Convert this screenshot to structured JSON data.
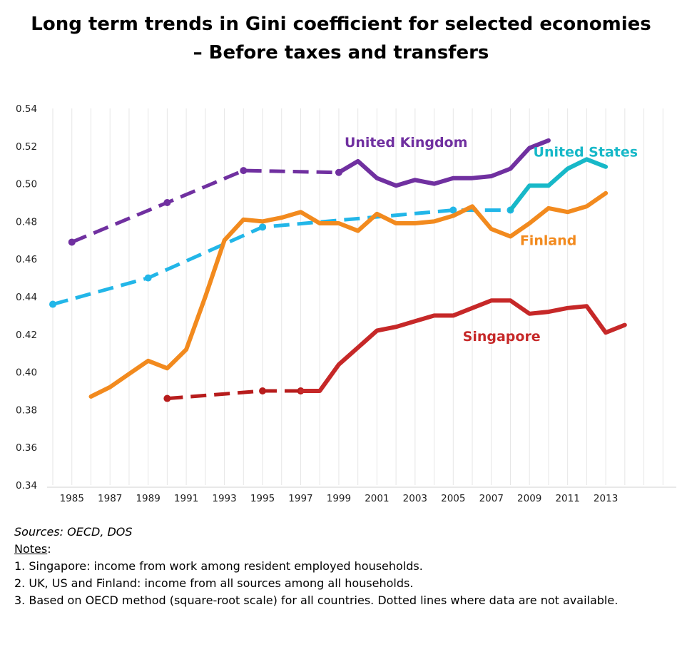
{
  "chart_data": {
    "type": "line",
    "title": "Long term trends in Gini coefficient for selected economies",
    "subtitle": "– Before taxes and transfers",
    "xlabel": "",
    "ylabel": "",
    "xlim": [
      1983.7,
      2016.7
    ],
    "ylim": [
      0.34,
      0.54
    ],
    "x_ticks": [
      "1985",
      "1987",
      "1989",
      "1991",
      "1993",
      "1995",
      "1997",
      "1999",
      "2001",
      "2003",
      "2005",
      "2007",
      "2009",
      "2011",
      "2013"
    ],
    "y_ticks": [
      "0.54",
      "0.52",
      "0.50",
      "0.48",
      "0.46",
      "0.44",
      "0.42",
      "0.40",
      "0.38",
      "0.36",
      "0.34"
    ],
    "grid": "vertical",
    "series": [
      {
        "name": "United Kingdom",
        "color": "#7030A0",
        "dashed_points": [
          [
            1985,
            0.469
          ],
          [
            1990,
            0.49
          ],
          [
            1994,
            0.507
          ],
          [
            1999,
            0.506
          ]
        ],
        "solid_points": [
          [
            1999,
            0.506
          ],
          [
            2000,
            0.512
          ],
          [
            2001,
            0.503
          ],
          [
            2002,
            0.499
          ],
          [
            2003,
            0.502
          ],
          [
            2004,
            0.5
          ],
          [
            2005,
            0.503
          ],
          [
            2006,
            0.503
          ],
          [
            2007,
            0.504
          ],
          [
            2008,
            0.508
          ],
          [
            2009,
            0.519
          ],
          [
            2010,
            0.523
          ]
        ]
      },
      {
        "name": "United States",
        "color": "#17B8C8",
        "dashed_color": "#22B6E8",
        "dashed_points": [
          [
            1984,
            0.436
          ],
          [
            1989,
            0.45
          ],
          [
            1995,
            0.477
          ],
          [
            2005,
            0.486
          ],
          [
            2008,
            0.486
          ]
        ],
        "solid_points": [
          [
            2008,
            0.486
          ],
          [
            2009,
            0.499
          ],
          [
            2010,
            0.499
          ],
          [
            2011,
            0.508
          ],
          [
            2012,
            0.513
          ],
          [
            2013,
            0.509
          ]
        ]
      },
      {
        "name": "Finland",
        "color": "#F28A1E",
        "dashed_points": [],
        "solid_points": [
          [
            1986,
            0.387
          ],
          [
            1987,
            0.392
          ],
          [
            1988,
            0.399
          ],
          [
            1989,
            0.406
          ],
          [
            1990,
            0.402
          ],
          [
            1991,
            0.412
          ],
          [
            1992,
            0.44
          ],
          [
            1993,
            0.47
          ],
          [
            1994,
            0.481
          ],
          [
            1995,
            0.48
          ],
          [
            1996,
            0.482
          ],
          [
            1997,
            0.485
          ],
          [
            1998,
            0.479
          ],
          [
            1999,
            0.479
          ],
          [
            2000,
            0.475
          ],
          [
            2001,
            0.484
          ],
          [
            2002,
            0.479
          ],
          [
            2003,
            0.479
          ],
          [
            2004,
            0.48
          ],
          [
            2005,
            0.483
          ],
          [
            2006,
            0.488
          ],
          [
            2007,
            0.476
          ],
          [
            2008,
            0.472
          ],
          [
            2009,
            0.479
          ],
          [
            2010,
            0.487
          ],
          [
            2011,
            0.485
          ],
          [
            2012,
            0.488
          ],
          [
            2013,
            0.495
          ]
        ]
      },
      {
        "name": "Singapore",
        "color": "#C62828",
        "dashed_color": "#B71C1C",
        "dashed_points": [
          [
            1990,
            0.386
          ],
          [
            1995,
            0.39
          ],
          [
            1997,
            0.39
          ]
        ],
        "solid_points": [
          [
            1997,
            0.39
          ],
          [
            1998,
            0.39
          ],
          [
            1999,
            0.404
          ],
          [
            2000,
            0.413
          ],
          [
            2001,
            0.422
          ],
          [
            2002,
            0.424
          ],
          [
            2003,
            0.427
          ],
          [
            2004,
            0.43
          ],
          [
            2005,
            0.43
          ],
          [
            2006,
            0.434
          ],
          [
            2007,
            0.438
          ],
          [
            2008,
            0.438
          ],
          [
            2009,
            0.431
          ],
          [
            2010,
            0.432
          ],
          [
            2011,
            0.434
          ],
          [
            2012,
            0.435
          ],
          [
            2013,
            0.421
          ],
          [
            2014,
            0.425
          ]
        ]
      }
    ],
    "annotations": [
      "United Kingdom",
      "United States",
      "Finland",
      "Singapore"
    ]
  },
  "notes": {
    "sources": "Sources: OECD, DOS",
    "header": "Notes",
    "header_suffix": ":",
    "items": [
      "1. Singapore: income from work among resident employed households.",
      "2. UK, US and Finland: income from all sources among all households.",
      "3. Based on OECD method (square-root scale) for all countries. Dotted lines where data are not available."
    ]
  }
}
